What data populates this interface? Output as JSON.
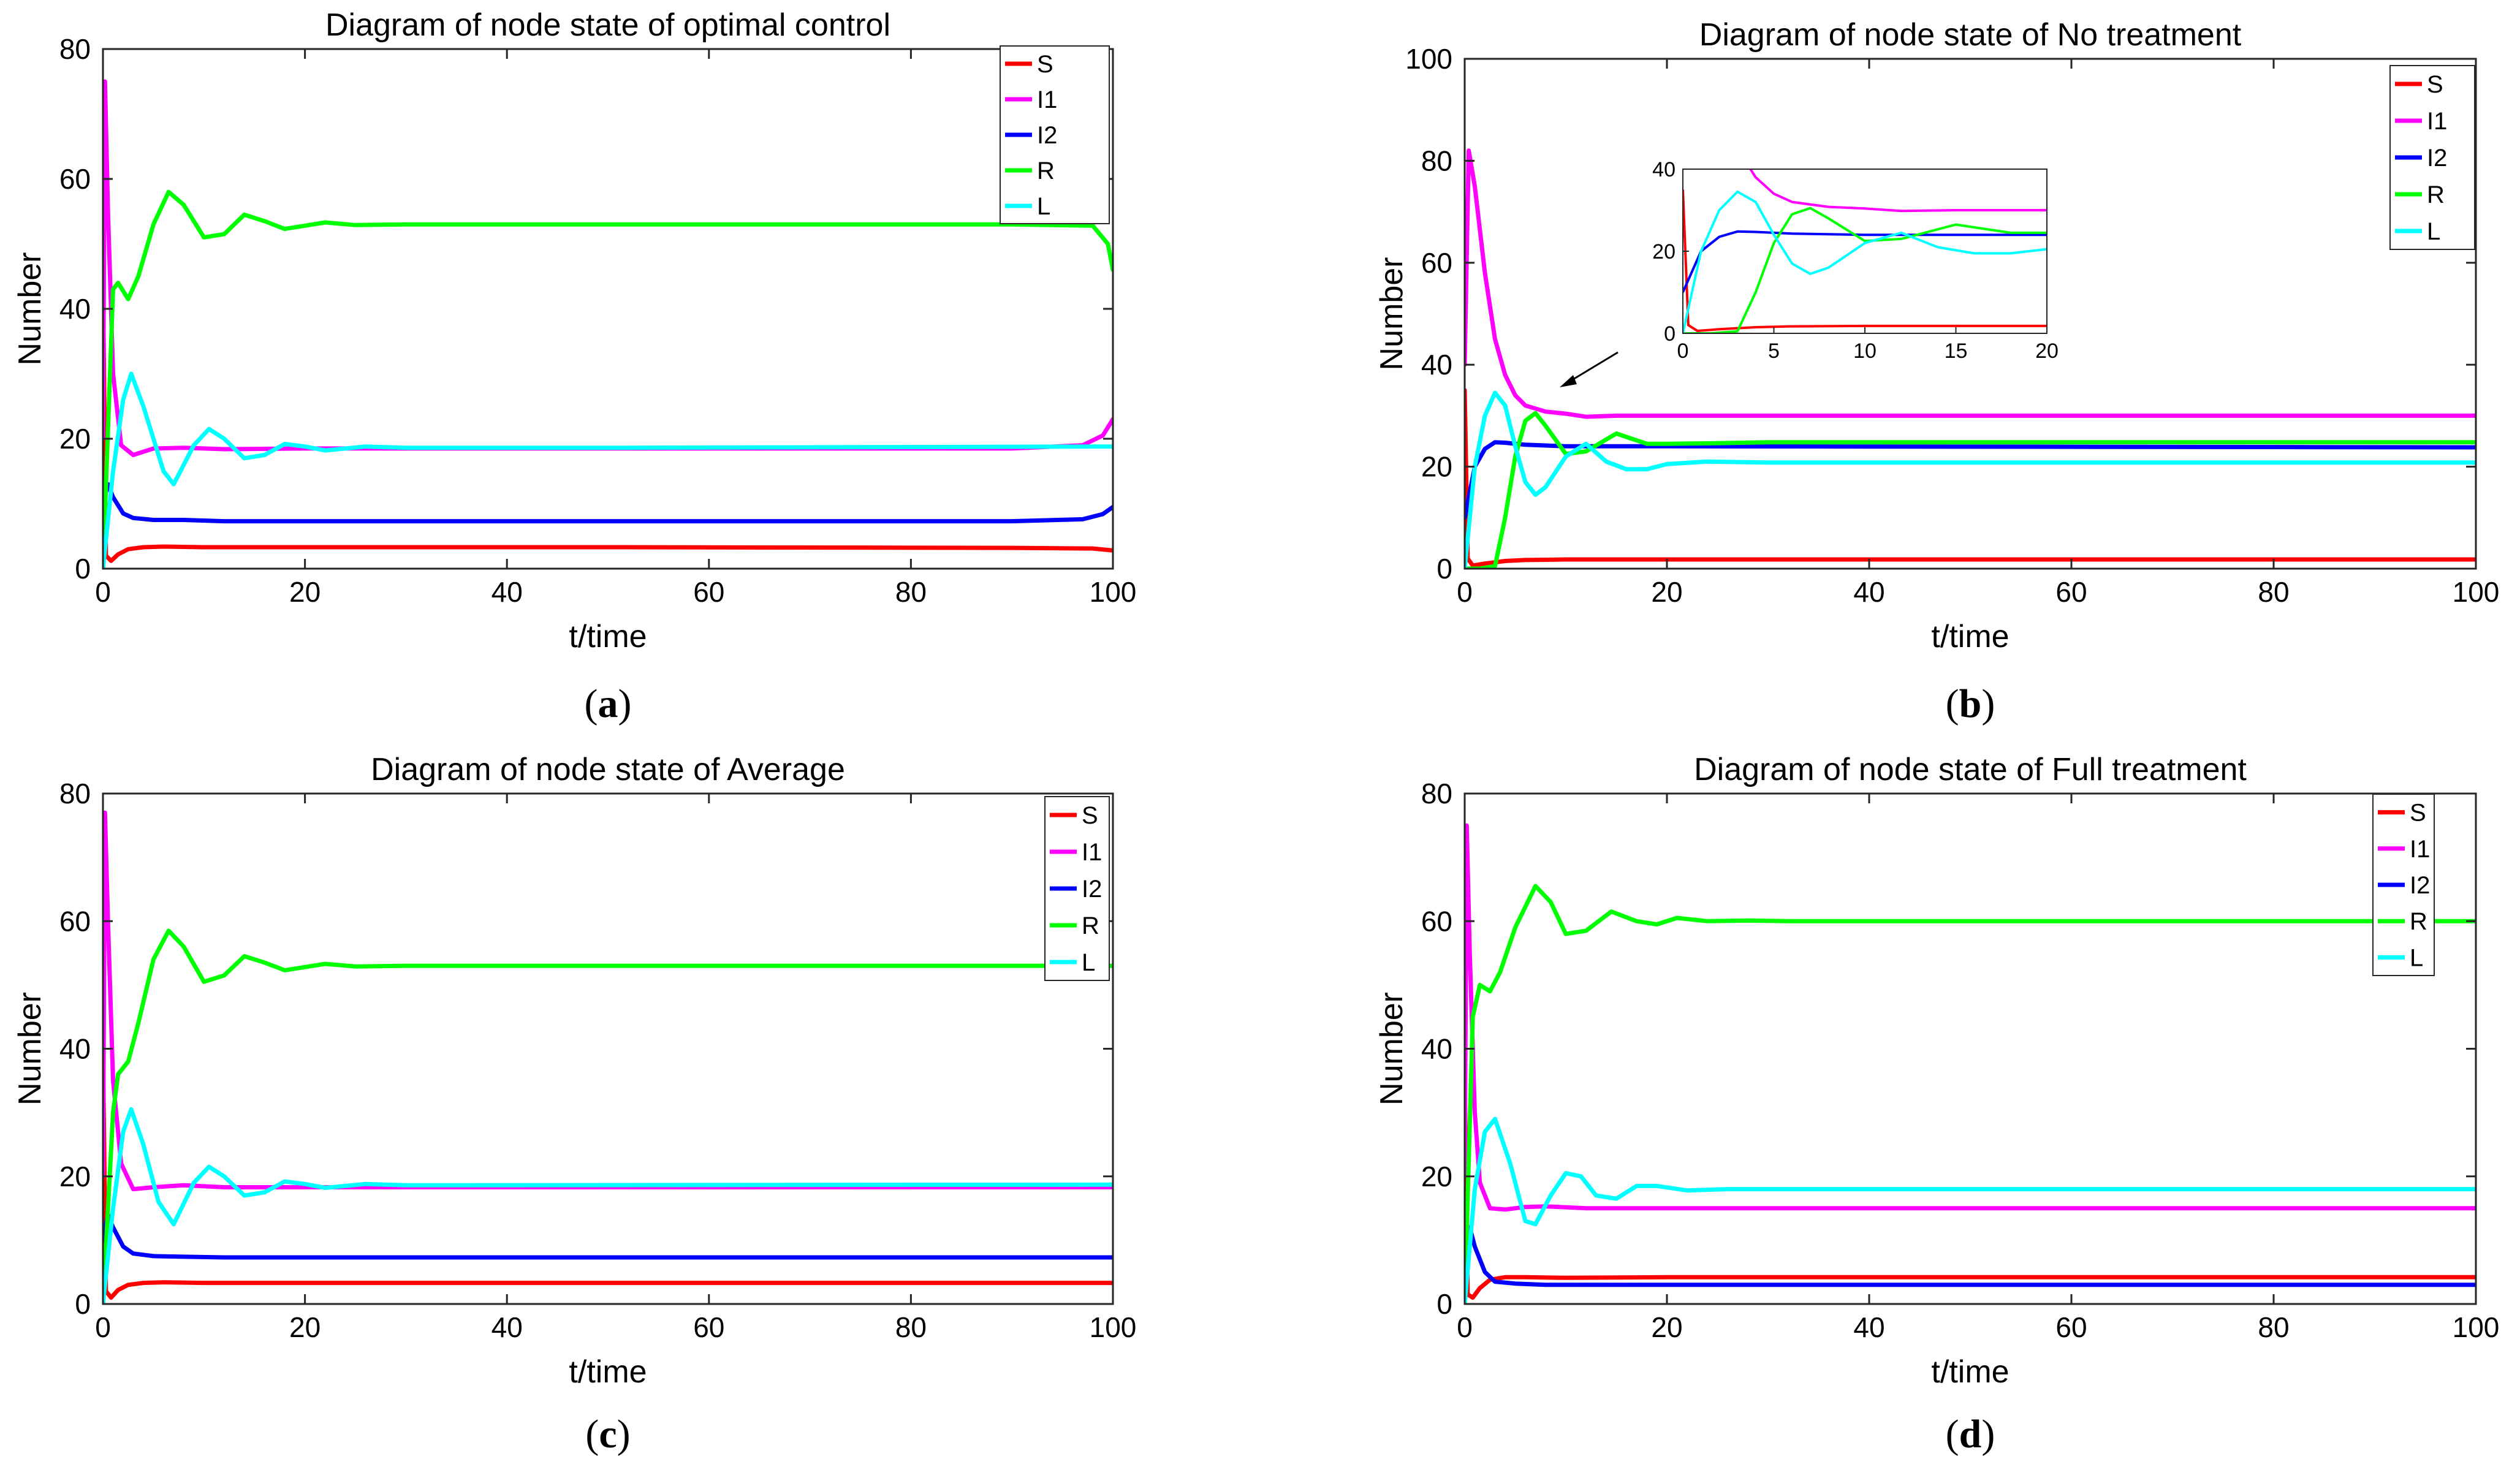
{
  "chart_data": [
    {
      "type": "line",
      "panel": "(a)",
      "panel_letter": "a",
      "title": "Diagram of node state of optimal control",
      "xlabel": "t/time",
      "ylabel": "Number",
      "xlim": [
        0,
        100
      ],
      "ylim": [
        0,
        80
      ],
      "xticks": [
        0,
        20,
        40,
        60,
        80,
        100
      ],
      "yticks": [
        0,
        20,
        40,
        60,
        80
      ],
      "legend_position": "top-right",
      "series": [
        {
          "name": "S",
          "color": "#ff0000",
          "x": [
            0,
            0.3,
            0.8,
            1.5,
            2.5,
            4,
            6,
            10,
            20,
            50,
            90,
            98,
            100
          ],
          "y": [
            45,
            2,
            1.2,
            2.2,
            3.0,
            3.3,
            3.4,
            3.3,
            3.3,
            3.3,
            3.2,
            3.1,
            2.8
          ]
        },
        {
          "name": "I1",
          "color": "#ff00ff",
          "x": [
            0,
            0.2,
            0.5,
            1,
            1.8,
            3,
            5,
            8,
            12,
            20,
            50,
            90,
            97,
            99,
            100
          ],
          "y": [
            20,
            75,
            55,
            30,
            19,
            17.5,
            18.5,
            18.6,
            18.4,
            18.5,
            18.5,
            18.5,
            19,
            20.5,
            23
          ]
        },
        {
          "name": "I2",
          "color": "#0000ff",
          "x": [
            0,
            0.5,
            1,
            2,
            3,
            5,
            8,
            12,
            20,
            50,
            90,
            97,
            99,
            100
          ],
          "y": [
            10,
            13,
            11,
            8.5,
            7.8,
            7.5,
            7.5,
            7.3,
            7.3,
            7.3,
            7.3,
            7.6,
            8.4,
            9.5
          ]
        },
        {
          "name": "R",
          "color": "#00ff00",
          "x": [
            0,
            1,
            1.5,
            2.5,
            3.5,
            5,
            6.5,
            8,
            10,
            12,
            14,
            16,
            18,
            20,
            22,
            25,
            30,
            50,
            90,
            98,
            99.5,
            100
          ],
          "y": [
            0,
            43,
            44,
            41.5,
            45,
            53,
            58,
            56,
            51,
            51.5,
            54.5,
            53.5,
            52.3,
            52.8,
            53.3,
            52.9,
            53.0,
            53,
            53,
            52.8,
            50,
            46
          ]
        },
        {
          "name": "L",
          "color": "#00ffff",
          "x": [
            0,
            1,
            2,
            2.8,
            4,
            6,
            7,
            9,
            10.5,
            12,
            14,
            16,
            18,
            20,
            22,
            26,
            30,
            50,
            100
          ],
          "y": [
            0,
            15,
            26,
            30,
            25,
            15,
            13,
            19,
            21.5,
            20,
            17,
            17.5,
            19.2,
            18.8,
            18.2,
            18.8,
            18.6,
            18.6,
            18.8
          ]
        }
      ]
    },
    {
      "type": "line",
      "panel": "(b)",
      "panel_letter": "b",
      "title": "Diagram of node state of No treatment",
      "xlabel": "t/time",
      "ylabel": "Number",
      "xlim": [
        0,
        100
      ],
      "ylim": [
        0,
        100
      ],
      "xticks": [
        0,
        20,
        40,
        60,
        80,
        100
      ],
      "yticks": [
        0,
        20,
        40,
        60,
        80,
        100
      ],
      "legend_position": "top-right",
      "series": [
        {
          "name": "S",
          "color": "#ff0000",
          "x": [
            0,
            0.3,
            0.8,
            2,
            4,
            6,
            10,
            20,
            100
          ],
          "y": [
            35,
            2,
            0.6,
            1.0,
            1.5,
            1.7,
            1.8,
            1.8,
            1.8
          ]
        },
        {
          "name": "I1",
          "color": "#ff00ff",
          "x": [
            0,
            0.4,
            1,
            2,
            3,
            4,
            5,
            6,
            8,
            10,
            12,
            15,
            20,
            100
          ],
          "y": [
            40,
            82,
            75,
            58,
            45,
            38,
            34,
            32,
            30.8,
            30.4,
            29.8,
            30.0,
            30.0,
            30.0
          ]
        },
        {
          "name": "I2",
          "color": "#0000ff",
          "x": [
            0,
            0.5,
            1,
            2,
            3,
            4,
            6,
            10,
            20,
            100
          ],
          "y": [
            10,
            15,
            20,
            23.5,
            24.8,
            24.7,
            24.3,
            24.0,
            24.0,
            23.8
          ]
        },
        {
          "name": "R",
          "color": "#00ff00",
          "x": [
            0,
            1.5,
            3,
            4,
            5,
            6,
            7,
            8,
            10,
            12,
            15,
            18,
            20,
            25,
            30,
            100
          ],
          "y": [
            0,
            0,
            0.5,
            10,
            22,
            29,
            30.5,
            28,
            22.5,
            23,
            26.5,
            24.5,
            24.5,
            24.6,
            24.8,
            24.8
          ]
        },
        {
          "name": "L",
          "color": "#00ffff",
          "x": [
            0,
            1,
            2,
            3,
            4,
            5,
            6,
            7,
            8,
            10,
            12,
            14,
            16,
            18,
            20,
            24,
            30,
            100
          ],
          "y": [
            0,
            20,
            30,
            34.5,
            32,
            24,
            17,
            14.5,
            16,
            22,
            24.5,
            21,
            19.5,
            19.5,
            20.5,
            21,
            20.8,
            20.8
          ]
        }
      ],
      "inset": {
        "xlim": [
          0,
          20
        ],
        "ylim": [
          0,
          40
        ],
        "xticks": [
          0,
          5,
          10,
          15,
          20
        ],
        "yticks": [
          0,
          20,
          40
        ]
      }
    },
    {
      "type": "line",
      "panel": "(c)",
      "panel_letter": "c",
      "title": "Diagram of node state of Average",
      "xlabel": "t/time",
      "ylabel": "Number",
      "xlim": [
        0,
        100
      ],
      "ylim": [
        0,
        80
      ],
      "xticks": [
        0,
        20,
        40,
        60,
        80,
        100
      ],
      "yticks": [
        0,
        20,
        40,
        60,
        80
      ],
      "legend_position": "top-right",
      "series": [
        {
          "name": "S",
          "color": "#ff0000",
          "x": [
            0,
            0.3,
            0.8,
            1.5,
            2.5,
            4,
            6,
            10,
            20,
            100
          ],
          "y": [
            40,
            2,
            1.0,
            2.2,
            3.0,
            3.3,
            3.4,
            3.3,
            3.3,
            3.3
          ]
        },
        {
          "name": "I1",
          "color": "#ff00ff",
          "x": [
            0,
            0.2,
            0.5,
            1,
            1.8,
            3,
            5,
            8,
            12,
            20,
            100
          ],
          "y": [
            20,
            77,
            60,
            35,
            22,
            18,
            18.3,
            18.6,
            18.3,
            18.3,
            18.3
          ]
        },
        {
          "name": "I2",
          "color": "#0000ff",
          "x": [
            0,
            0.5,
            1,
            2,
            3,
            5,
            8,
            12,
            20,
            100
          ],
          "y": [
            10,
            14,
            12,
            9,
            7.9,
            7.5,
            7.4,
            7.3,
            7.3,
            7.3
          ]
        },
        {
          "name": "R",
          "color": "#00ff00",
          "x": [
            0,
            1,
            1.5,
            2.5,
            3.5,
            5,
            6.5,
            8,
            10,
            12,
            14,
            16,
            18,
            20,
            22,
            25,
            30,
            100
          ],
          "y": [
            0,
            30,
            36,
            38,
            44,
            54,
            58.5,
            56,
            50.5,
            51.5,
            54.5,
            53.5,
            52.3,
            52.8,
            53.3,
            52.9,
            53,
            53
          ]
        },
        {
          "name": "L",
          "color": "#00ffff",
          "x": [
            0,
            1,
            2,
            2.8,
            4,
            5.5,
            7,
            9,
            10.5,
            12,
            14,
            16,
            18,
            20,
            22,
            26,
            30,
            100
          ],
          "y": [
            0,
            15,
            27,
            30.5,
            25,
            16,
            12.5,
            19,
            21.5,
            20,
            17,
            17.5,
            19.2,
            18.8,
            18.2,
            18.8,
            18.6,
            18.7
          ]
        }
      ]
    },
    {
      "type": "line",
      "panel": "(d)",
      "panel_letter": "d",
      "title": "Diagram of node state of Full treatment",
      "xlabel": "t/time",
      "ylabel": "Number",
      "xlim": [
        0,
        100
      ],
      "ylim": [
        0,
        80
      ],
      "xticks": [
        0,
        20,
        40,
        60,
        80,
        100
      ],
      "yticks": [
        0,
        20,
        40,
        60,
        80
      ],
      "legend_position": "top-right",
      "series": [
        {
          "name": "S",
          "color": "#ff0000",
          "x": [
            0,
            0.3,
            0.8,
            1.5,
            2.5,
            4,
            6,
            10,
            20,
            100
          ],
          "y": [
            35,
            1.5,
            1.0,
            2.5,
            3.8,
            4.2,
            4.2,
            4.1,
            4.2,
            4.2
          ]
        },
        {
          "name": "I1",
          "color": "#ff00ff",
          "x": [
            0,
            0.2,
            0.5,
            1,
            1.5,
            2.5,
            4,
            6,
            8,
            12,
            20,
            100
          ],
          "y": [
            20,
            75,
            55,
            30,
            19,
            15,
            14.8,
            15.2,
            15.3,
            15,
            15,
            15
          ]
        },
        {
          "name": "I2",
          "color": "#0000ff",
          "x": [
            0,
            0.5,
            1,
            2,
            3,
            5,
            8,
            12,
            20,
            100
          ],
          "y": [
            10,
            12,
            9,
            5,
            3.5,
            3.2,
            3.0,
            3.0,
            3.0,
            3.0
          ]
        },
        {
          "name": "R",
          "color": "#00ff00",
          "x": [
            0,
            0.8,
            1.5,
            2.5,
            3.5,
            5,
            7,
            8.5,
            10,
            12,
            14.5,
            17,
            19,
            21,
            24,
            28,
            32,
            100
          ],
          "y": [
            0,
            45,
            50,
            49,
            52,
            59,
            65.5,
            63,
            58,
            58.5,
            61.5,
            60,
            59.5,
            60.5,
            60,
            60.1,
            60,
            60
          ]
        },
        {
          "name": "L",
          "color": "#00ffff",
          "x": [
            0,
            1,
            2,
            3,
            4.5,
            6,
            7,
            8.5,
            10,
            11.5,
            13,
            15,
            17,
            19,
            22,
            26,
            30,
            100
          ],
          "y": [
            0,
            18,
            27,
            29,
            22,
            13,
            12.5,
            17,
            20.5,
            20,
            17,
            16.5,
            18.5,
            18.5,
            17.8,
            18,
            18,
            18
          ]
        }
      ]
    }
  ]
}
